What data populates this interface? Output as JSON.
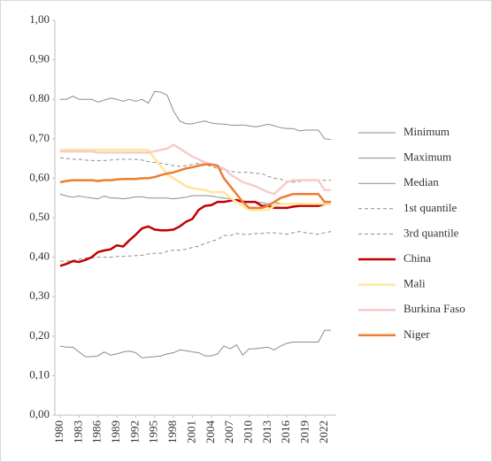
{
  "chart_data": {
    "type": "line",
    "x": [
      1980,
      1981,
      1982,
      1983,
      1984,
      1985,
      1986,
      1987,
      1988,
      1989,
      1990,
      1991,
      1992,
      1993,
      1994,
      1995,
      1996,
      1997,
      1998,
      1999,
      2000,
      2001,
      2002,
      2003,
      2004,
      2005,
      2006,
      2007,
      2008,
      2009,
      2010,
      2011,
      2012,
      2013,
      2014,
      2015,
      2016,
      2017,
      2018,
      2019,
      2020,
      2021,
      2022,
      2023
    ],
    "xlim": [
      1980,
      2023
    ],
    "xticks": [
      1980,
      1983,
      1986,
      1989,
      1992,
      1995,
      1998,
      2001,
      2004,
      2007,
      2010,
      2013,
      2016,
      2019,
      2022
    ],
    "ylim": [
      0,
      1
    ],
    "yticks": [
      {
        "value": 0,
        "label": "0,00"
      },
      {
        "value": 0.1,
        "label": "0,10"
      },
      {
        "value": 0.2,
        "label": "0,20"
      },
      {
        "value": 0.3,
        "label": "0,30"
      },
      {
        "value": 0.4,
        "label": "0,40"
      },
      {
        "value": 0.5,
        "label": "0,50"
      },
      {
        "value": 0.6,
        "label": "0,60"
      },
      {
        "value": 0.7,
        "label": "0,70"
      },
      {
        "value": 0.8,
        "label": "0.80"
      },
      {
        "value": 0.9,
        "label": "0,90"
      },
      {
        "value": 1,
        "label": "1,00"
      }
    ],
    "legend": "right",
    "series": [
      {
        "name": "Minimum",
        "color": "#8c8c8c",
        "linewidth": 1,
        "dashed": false,
        "values": [
          0.175,
          0.172,
          0.172,
          0.16,
          0.148,
          0.148,
          0.15,
          0.16,
          0.152,
          0.155,
          0.16,
          0.162,
          0.158,
          0.145,
          0.147,
          0.148,
          0.15,
          0.155,
          0.158,
          0.165,
          0.163,
          0.16,
          0.158,
          0.15,
          0.15,
          0.155,
          0.175,
          0.168,
          0.178,
          0.152,
          0.168,
          0.168,
          0.17,
          0.172,
          0.165,
          0.175,
          0.182,
          0.185,
          0.185,
          0.185,
          0.185,
          0.185,
          0.215,
          0.215
        ]
      },
      {
        "name": "Maximum",
        "color": "#8c8c8c",
        "linewidth": 1,
        "dashed": false,
        "values": [
          0.8,
          0.8,
          0.808,
          0.8,
          0.8,
          0.8,
          0.793,
          0.798,
          0.803,
          0.8,
          0.795,
          0.8,
          0.795,
          0.8,
          0.79,
          0.82,
          0.818,
          0.81,
          0.77,
          0.745,
          0.738,
          0.738,
          0.742,
          0.745,
          0.74,
          0.738,
          0.737,
          0.735,
          0.734,
          0.735,
          0.733,
          0.73,
          0.733,
          0.737,
          0.733,
          0.728,
          0.726,
          0.726,
          0.72,
          0.722,
          0.722,
          0.722,
          0.7,
          0.698
        ]
      },
      {
        "name": "Median",
        "color": "#8c8c8c",
        "linewidth": 1,
        "dashed": false,
        "values": [
          0.56,
          0.555,
          0.552,
          0.555,
          0.552,
          0.55,
          0.548,
          0.555,
          0.55,
          0.55,
          0.548,
          0.55,
          0.553,
          0.553,
          0.55,
          0.55,
          0.55,
          0.55,
          0.548,
          0.55,
          0.552,
          0.556,
          0.556,
          0.556,
          0.555,
          0.552,
          0.55,
          0.548,
          0.545,
          0.543,
          0.54,
          0.54,
          0.538,
          0.535,
          0.538,
          0.537,
          0.535,
          0.535,
          0.535,
          0.535,
          0.535,
          0.535,
          0.535,
          0.535
        ]
      },
      {
        "name": "1st quantile",
        "color": "#8c8c8c",
        "linewidth": 1,
        "dashed": true,
        "values": [
          0.39,
          0.39,
          0.392,
          0.395,
          0.398,
          0.398,
          0.4,
          0.4,
          0.4,
          0.402,
          0.402,
          0.403,
          0.404,
          0.405,
          0.408,
          0.41,
          0.41,
          0.415,
          0.418,
          0.418,
          0.42,
          0.425,
          0.428,
          0.435,
          0.44,
          0.445,
          0.455,
          0.455,
          0.46,
          0.458,
          0.458,
          0.46,
          0.46,
          0.462,
          0.462,
          0.46,
          0.458,
          0.462,
          0.465,
          0.462,
          0.46,
          0.458,
          0.462,
          0.465
        ]
      },
      {
        "name": "3rd quantile",
        "color": "#8c8c8c",
        "linewidth": 1,
        "dashed": true,
        "values": [
          0.652,
          0.65,
          0.648,
          0.648,
          0.646,
          0.645,
          0.645,
          0.645,
          0.646,
          0.648,
          0.648,
          0.648,
          0.648,
          0.646,
          0.642,
          0.64,
          0.638,
          0.635,
          0.632,
          0.63,
          0.632,
          0.635,
          0.638,
          0.635,
          0.63,
          0.625,
          0.622,
          0.618,
          0.615,
          0.615,
          0.615,
          0.612,
          0.612,
          0.605,
          0.6,
          0.598,
          0.592,
          0.59,
          0.592,
          0.595,
          0.595,
          0.595,
          0.595,
          0.595
        ]
      },
      {
        "name": "China",
        "color": "#c00000",
        "linewidth": 2.5,
        "dashed": false,
        "values": [
          0.378,
          0.383,
          0.39,
          0.388,
          0.393,
          0.4,
          0.413,
          0.417,
          0.42,
          0.43,
          0.427,
          0.443,
          0.457,
          0.473,
          0.478,
          0.47,
          0.468,
          0.468,
          0.47,
          0.478,
          0.49,
          0.497,
          0.52,
          0.53,
          0.532,
          0.54,
          0.54,
          0.543,
          0.545,
          0.54,
          0.54,
          0.54,
          0.53,
          0.53,
          0.525,
          0.525,
          0.525,
          0.528,
          0.53,
          0.53,
          0.53,
          0.53,
          0.535,
          0.535
        ]
      },
      {
        "name": "Mali",
        "color": "#ffe699",
        "linewidth": 2.5,
        "dashed": false,
        "values": [
          0.672,
          0.672,
          0.672,
          0.672,
          0.672,
          0.672,
          0.672,
          0.672,
          0.672,
          0.672,
          0.672,
          0.672,
          0.672,
          0.672,
          0.672,
          0.65,
          0.63,
          0.61,
          0.6,
          0.59,
          0.58,
          0.575,
          0.572,
          0.57,
          0.565,
          0.565,
          0.565,
          0.55,
          0.54,
          0.53,
          0.52,
          0.52,
          0.52,
          0.52,
          0.53,
          0.535,
          0.535,
          0.535,
          0.535,
          0.535,
          0.535,
          0.535,
          0.535,
          0.535
        ]
      },
      {
        "name": "Burkina Faso",
        "color": "#f8cbcb",
        "linewidth": 2.5,
        "dashed": false,
        "values": [
          0.668,
          0.668,
          0.668,
          0.668,
          0.668,
          0.668,
          0.665,
          0.665,
          0.665,
          0.665,
          0.665,
          0.665,
          0.665,
          0.665,
          0.665,
          0.668,
          0.672,
          0.675,
          0.685,
          0.675,
          0.665,
          0.655,
          0.648,
          0.64,
          0.635,
          0.63,
          0.625,
          0.61,
          0.6,
          0.59,
          0.585,
          0.58,
          0.572,
          0.565,
          0.56,
          0.575,
          0.59,
          0.595,
          0.595,
          0.595,
          0.595,
          0.595,
          0.57,
          0.57
        ]
      },
      {
        "name": "Niger",
        "color": "#ed7d31",
        "linewidth": 2.5,
        "dashed": false,
        "values": [
          0.59,
          0.593,
          0.595,
          0.595,
          0.595,
          0.595,
          0.593,
          0.595,
          0.595,
          0.597,
          0.598,
          0.598,
          0.598,
          0.6,
          0.6,
          0.603,
          0.608,
          0.612,
          0.615,
          0.62,
          0.625,
          0.628,
          0.632,
          0.635,
          0.635,
          0.632,
          0.6,
          0.58,
          0.56,
          0.54,
          0.525,
          0.525,
          0.525,
          0.53,
          0.54,
          0.55,
          0.555,
          0.56,
          0.56,
          0.56,
          0.56,
          0.56,
          0.54,
          0.54
        ]
      }
    ]
  }
}
